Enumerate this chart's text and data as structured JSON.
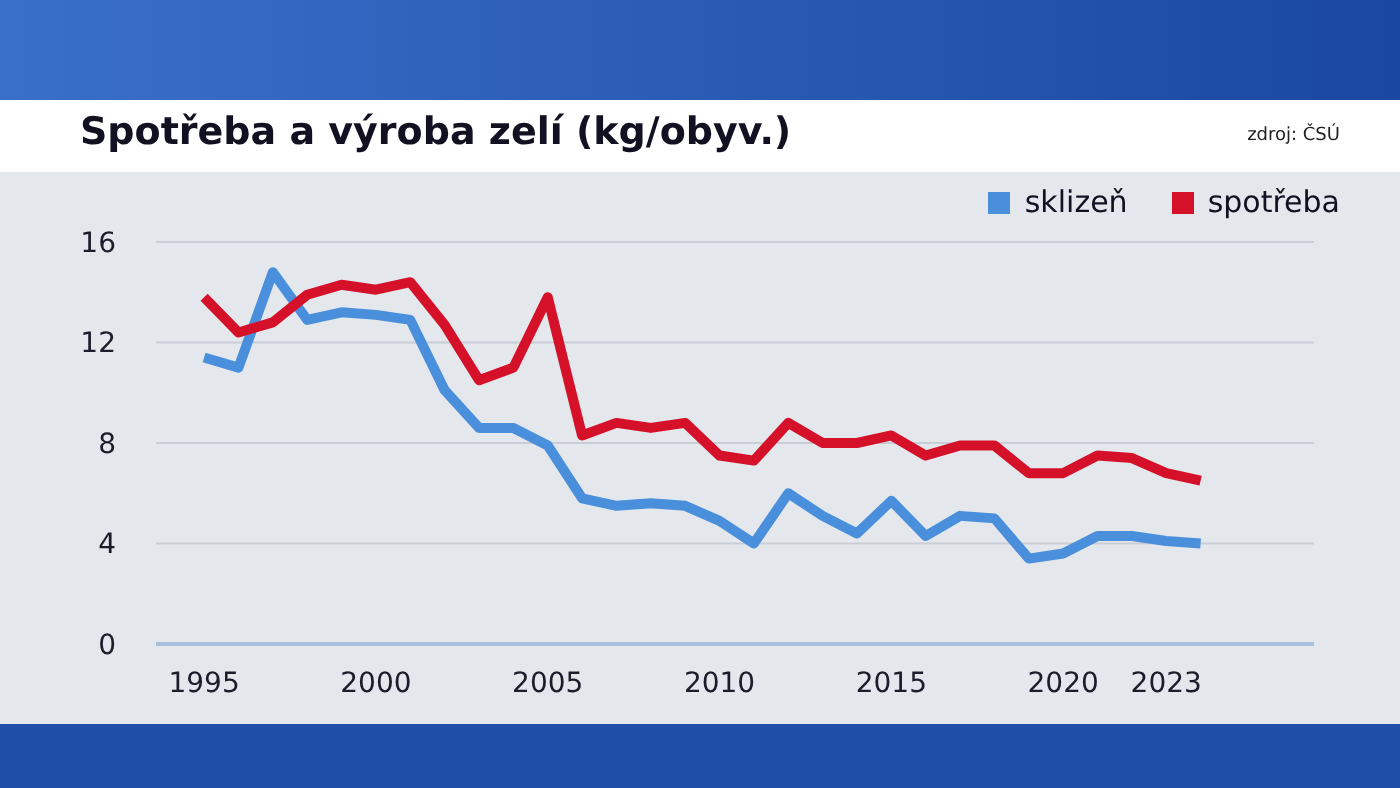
{
  "chart_data": {
    "type": "line",
    "title": "Spotřeba a výroba zelí (kg/obyv.)",
    "annotations": [
      "zdroj: ČSÚ"
    ],
    "x": [
      1995,
      1996,
      1997,
      1998,
      1999,
      2000,
      2001,
      2002,
      2003,
      2004,
      2005,
      2006,
      2007,
      2008,
      2009,
      2010,
      2011,
      2012,
      2013,
      2014,
      2015,
      2016,
      2017,
      2018,
      2019,
      2020,
      2021,
      2022,
      2023,
      2024
    ],
    "series": [
      {
        "name": "sklizeň",
        "color": "#4a8fdc",
        "values": [
          11.4,
          11.0,
          14.8,
          12.9,
          13.2,
          13.1,
          12.9,
          10.1,
          8.6,
          8.6,
          7.9,
          5.8,
          5.5,
          5.6,
          5.5,
          4.9,
          4.0,
          6.0,
          5.1,
          4.4,
          5.7,
          4.3,
          5.1,
          5.0,
          3.4,
          3.6,
          4.3,
          4.3,
          4.1,
          4.0
        ]
      },
      {
        "name": "spotřeba",
        "color": "#d5112a",
        "values": [
          13.8,
          12.4,
          12.8,
          13.9,
          14.3,
          14.1,
          14.4,
          12.7,
          10.5,
          11.0,
          13.8,
          8.3,
          8.8,
          8.6,
          8.8,
          7.5,
          7.3,
          8.8,
          8.0,
          8.0,
          8.3,
          7.5,
          7.9,
          7.9,
          6.8,
          6.8,
          7.5,
          7.4,
          6.8,
          6.5
        ]
      }
    ],
    "xlim": [
      1993.6,
      2027.3
    ],
    "xticks": [
      1995,
      2000,
      2005,
      2010,
      2015,
      2020,
      2023
    ],
    "ylim": [
      0,
      16
    ],
    "yticks": [
      0,
      4,
      8,
      12,
      16
    ],
    "grid": "y",
    "legend": "top right",
    "marker": "none",
    "line_style": "solid"
  }
}
